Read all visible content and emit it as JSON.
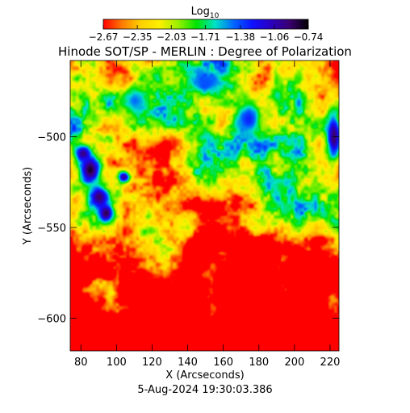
{
  "chart_data": {
    "type": "heatmap",
    "title": "Hinode SOT/SP - MERLIN : Degree of Polarization",
    "colorbar": {
      "label_main": "Log",
      "label_sub": "10",
      "ticks": [
        -2.67,
        -2.35,
        -2.03,
        -1.71,
        -1.38,
        -1.06,
        -0.74
      ],
      "tick_labels": [
        "−2.67",
        "−2.35",
        "−2.03",
        "−1.71",
        "−1.38",
        "−1.06",
        "−0.74"
      ],
      "range": [
        -2.67,
        -0.74
      ],
      "colors": [
        "#ff0000",
        "#ff7a00",
        "#ffd000",
        "#fff000",
        "#9cf000",
        "#00e400",
        "#00e2c8",
        "#0066ff",
        "#1010ff",
        "#2a00c0",
        "#3a0070",
        "#000000"
      ]
    },
    "xlabel": "X (Arcseconds)",
    "ylabel": "Y (Arcseconds)",
    "xlim": [
      74,
      225
    ],
    "ylim": [
      -618,
      -458
    ],
    "xticks": [
      80,
      100,
      120,
      140,
      160,
      180,
      200,
      220
    ],
    "yticks": [
      -500,
      -550,
      -600
    ],
    "xtick_labels": [
      "80",
      "100",
      "120",
      "140",
      "160",
      "180",
      "200",
      "220"
    ],
    "ytick_labels": [
      "−500",
      "−550",
      "−600"
    ],
    "timestamp": "5-Aug-2024 19:30:03.386",
    "features": [
      {
        "kind": "pore",
        "x": 85,
        "y": -518,
        "rx": 7,
        "ry": 10,
        "value": -0.8
      },
      {
        "kind": "pore",
        "x": 90,
        "y": -533,
        "rx": 7,
        "ry": 8,
        "value": -0.9
      },
      {
        "kind": "pore",
        "x": 94,
        "y": -542,
        "rx": 5,
        "ry": 6,
        "value": -0.85
      },
      {
        "kind": "pore",
        "x": 104,
        "y": -522,
        "rx": 4,
        "ry": 4,
        "value": -1.0
      },
      {
        "kind": "pore",
        "x": 81,
        "y": -509,
        "rx": 5,
        "ry": 5,
        "value": -0.95
      },
      {
        "kind": "plage",
        "x": 222,
        "y": -500,
        "rx": 6,
        "ry": 18,
        "value": -0.9
      },
      {
        "kind": "network",
        "x": 174,
        "y": -490,
        "rx": 10,
        "ry": 12,
        "value": -1.3
      },
      {
        "kind": "network",
        "x": 150,
        "y": -470,
        "rx": 12,
        "ry": 6,
        "value": -1.4
      },
      {
        "kind": "network",
        "x": 110,
        "y": -480,
        "rx": 8,
        "ry": 10,
        "value": -1.45
      }
    ]
  }
}
